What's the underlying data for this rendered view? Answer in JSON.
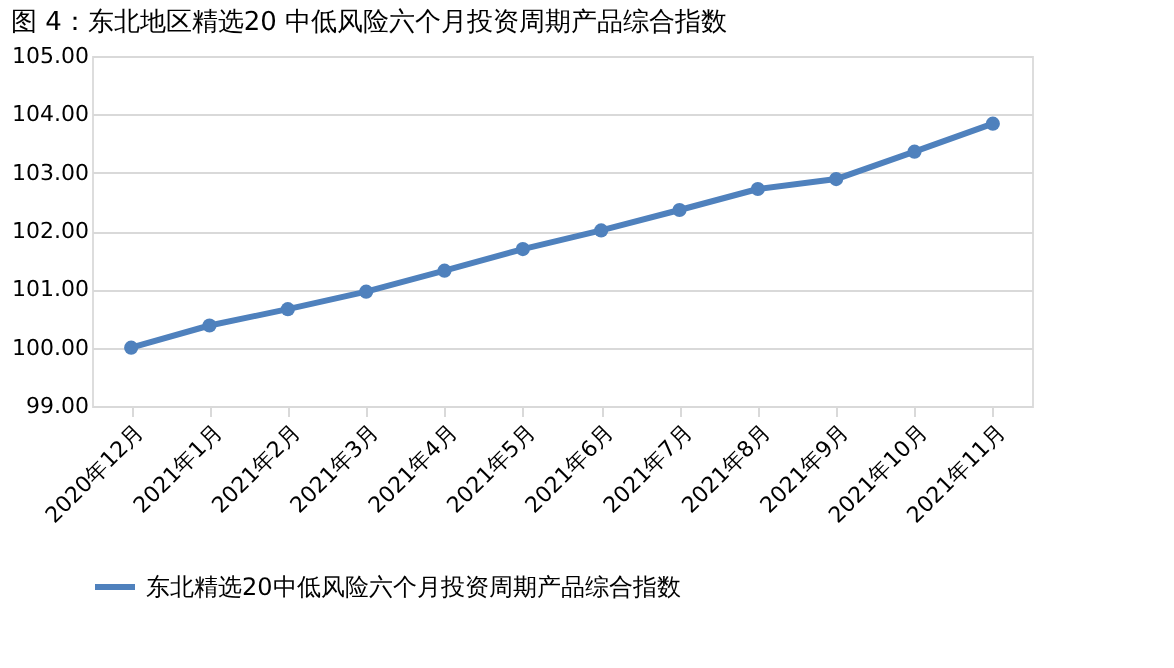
{
  "chart_data": {
    "type": "line",
    "title": "图 4：东北地区精选20 中低风险六个月投资周期产品综合指数",
    "categories": [
      "2020年12月",
      "2021年1月",
      "2021年2月",
      "2021年3月",
      "2021年4月",
      "2021年5月",
      "2021年6月",
      "2021年7月",
      "2021年8月",
      "2021年9月",
      "2021年10月",
      "2021年11月"
    ],
    "series": [
      {
        "name": "东北精选20中低风险六个月投资周期产品综合指数",
        "color": "#4f81bd",
        "values": [
          100.0,
          100.38,
          100.66,
          100.96,
          101.32,
          101.69,
          102.01,
          102.36,
          102.72,
          102.89,
          103.36,
          103.84
        ]
      }
    ],
    "ylim": [
      99,
      105
    ],
    "yticks": [
      {
        "value": 99,
        "label": "99.00"
      },
      {
        "value": 100,
        "label": "100.00"
      },
      {
        "value": 101,
        "label": "101.00"
      },
      {
        "value": 102,
        "label": "102.00"
      },
      {
        "value": 103,
        "label": "103.00"
      },
      {
        "value": 104,
        "label": "104.00"
      },
      {
        "value": 105,
        "label": "105.00"
      }
    ],
    "grid": "y",
    "legend": "bottom",
    "marker": "circle",
    "line_style": "solid"
  }
}
